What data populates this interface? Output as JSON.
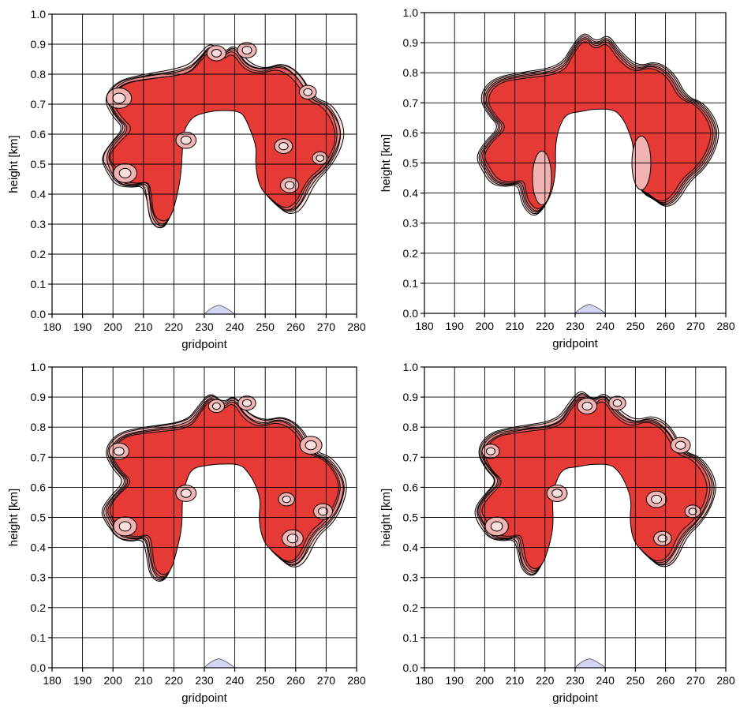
{
  "figure": {
    "layout": "2x2 panel grid",
    "colors": {
      "level1": "#f9dede",
      "level2": "#f2b3b3",
      "level3": "#ec8a8a",
      "level4": "#e65a5a",
      "level5": "#e53a36",
      "contour_line": "#000000",
      "terrain": "#d4d4f5",
      "grid": "#000000"
    },
    "fill_levels": 5,
    "grid": true
  },
  "chart_data": [
    {
      "type": "contour",
      "panel": "top-left",
      "xlabel": "gridpoint",
      "ylabel": "height [km]",
      "xlim": [
        180,
        280
      ],
      "ylim": [
        0.0,
        1.0
      ],
      "xticks": [
        "180",
        "190",
        "200",
        "210",
        "220",
        "230",
        "240",
        "250",
        "260",
        "270",
        "280"
      ],
      "yticks": [
        "0.0",
        "0.1",
        "0.2",
        "0.3",
        "0.4",
        "0.5",
        "0.6",
        "0.7",
        "0.8",
        "0.9",
        "1.0"
      ],
      "structure": "arch-shaped thermal with rolled-up vortices",
      "arch_inner_top_km": 0.7,
      "arch_outer_top_km": 0.92,
      "left_leg_bottom_km": 0.28,
      "right_leg_bottom_km": 0.33,
      "x_extent": [
        196,
        276
      ],
      "terrain": {
        "x": [
          230,
          235,
          240
        ],
        "height_km": [
          0.0,
          0.03,
          0.0
        ]
      },
      "texture": "highly turbulent"
    },
    {
      "type": "contour",
      "panel": "top-right",
      "xlabel": "gridpoint",
      "ylabel": "height [km]",
      "xlim": [
        180,
        280
      ],
      "ylim": [
        0.0,
        1.0
      ],
      "xticks": [
        "180",
        "190",
        "200",
        "210",
        "220",
        "230",
        "240",
        "250",
        "260",
        "270",
        "280"
      ],
      "yticks": [
        "0.0",
        "0.1",
        "0.2",
        "0.3",
        "0.4",
        "0.5",
        "0.6",
        "0.7",
        "0.8",
        "0.9",
        "1.0"
      ],
      "structure": "smooth arch-shaped thermal",
      "arch_inner_top_km": 0.7,
      "arch_outer_top_km": 0.95,
      "left_leg_bottom_km": 0.32,
      "right_leg_bottom_km": 0.35,
      "x_extent": [
        197,
        278
      ],
      "terrain": {
        "x": [
          230,
          235,
          240
        ],
        "height_km": [
          0.0,
          0.03,
          0.0
        ]
      },
      "texture": "smooth"
    },
    {
      "type": "contour",
      "panel": "bottom-left",
      "xlabel": "gridpoint",
      "ylabel": "height [km]",
      "xlim": [
        180,
        280
      ],
      "ylim": [
        0.0,
        1.0
      ],
      "xticks": [
        "180",
        "190",
        "200",
        "210",
        "220",
        "230",
        "240",
        "250",
        "260",
        "270",
        "280"
      ],
      "yticks": [
        "0.0",
        "0.1",
        "0.2",
        "0.3",
        "0.4",
        "0.5",
        "0.6",
        "0.7",
        "0.8",
        "0.9",
        "1.0"
      ],
      "structure": "arch-shaped thermal with rolled-up vortices",
      "arch_inner_top_km": 0.7,
      "arch_outer_top_km": 0.93,
      "left_leg_bottom_km": 0.28,
      "right_leg_bottom_km": 0.33,
      "x_extent": [
        196,
        277
      ],
      "terrain": {
        "x": [
          230,
          235,
          240
        ],
        "height_km": [
          0.0,
          0.03,
          0.0
        ]
      },
      "texture": "turbulent"
    },
    {
      "type": "contour",
      "panel": "bottom-right",
      "xlabel": "gridpoint",
      "ylabel": "height [km]",
      "xlim": [
        180,
        280
      ],
      "ylim": [
        0.0,
        1.0
      ],
      "xticks": [
        "180",
        "190",
        "200",
        "210",
        "220",
        "230",
        "240",
        "250",
        "260",
        "270",
        "280"
      ],
      "yticks": [
        "0.0",
        "0.1",
        "0.2",
        "0.3",
        "0.4",
        "0.5",
        "0.6",
        "0.7",
        "0.8",
        "0.9",
        "1.0"
      ],
      "structure": "arch-shaped thermal with rolled-up vortices",
      "arch_inner_top_km": 0.7,
      "arch_outer_top_km": 0.94,
      "left_leg_bottom_km": 0.3,
      "right_leg_bottom_km": 0.33,
      "x_extent": [
        196,
        277
      ],
      "terrain": {
        "x": [
          230,
          235,
          240
        ],
        "height_km": [
          0.0,
          0.03,
          0.0
        ]
      },
      "texture": "moderately turbulent"
    }
  ]
}
